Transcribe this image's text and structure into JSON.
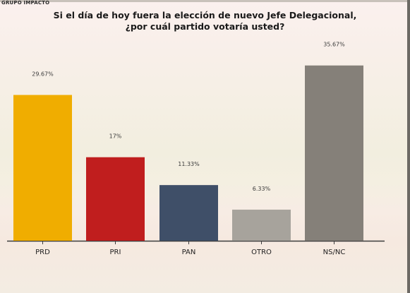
{
  "brand": "GRUPO IMPACTO",
  "chart_data": {
    "type": "bar",
    "title_line1": "Si el día de hoy fuera la elección de nuevo Jefe Delegacional,",
    "title_line2": "¿por cuál partido votaría usted?",
    "categories": [
      "PRD",
      "PRI",
      "PAN",
      "OTRO",
      "NS/NC"
    ],
    "values": [
      29.67,
      17,
      11.33,
      6.33,
      35.67
    ],
    "value_labels": [
      "29.67%",
      "17%",
      "11.33%",
      "6.33%",
      "35.67%"
    ],
    "colors": [
      "#f0ad00",
      "#c01e1e",
      "#3f4f68",
      "#a7a39c",
      "#858079"
    ],
    "ylim": [
      0,
      40
    ],
    "grid": false,
    "legend": "none"
  }
}
